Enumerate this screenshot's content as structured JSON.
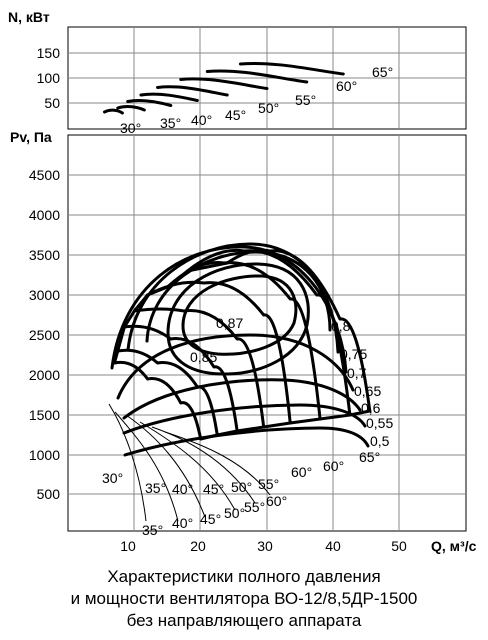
{
  "chart_data": [
    {
      "type": "line",
      "ylabel": "N, кВт",
      "yticks": [
        "150",
        "100",
        "50"
      ],
      "ylim": [
        0,
        175
      ],
      "xlim": [
        0,
        50
      ],
      "series": [
        {
          "name": "30°",
          "x": [
            5.5,
            8.2
          ],
          "y": [
            32,
            30
          ]
        },
        {
          "name": "35°",
          "x": [
            7.5,
            11.5
          ],
          "y": [
            40,
            36
          ]
        },
        {
          "name": "40°",
          "x": [
            9,
            15.5
          ],
          "y": [
            53,
            45
          ]
        },
        {
          "name": "45°",
          "x": [
            11,
            19.5
          ],
          "y": [
            66,
            55
          ]
        },
        {
          "name": "50°",
          "x": [
            13.5,
            24
          ],
          "y": [
            81,
            66
          ]
        },
        {
          "name": "55°",
          "x": [
            17,
            30
          ],
          "y": [
            97,
            79
          ]
        },
        {
          "name": "60°",
          "x": [
            21,
            36
          ],
          "y": [
            113,
            92
          ]
        },
        {
          "name": "65°",
          "x": [
            26,
            41.5
          ],
          "y": [
            128,
            108
          ]
        }
      ]
    },
    {
      "type": "line",
      "ylabel": "Pv, Па",
      "xlabel": "Q, м³/с",
      "yticks": [
        "4500",
        "4000",
        "3500",
        "3000",
        "2500",
        "2000",
        "1500",
        "1000",
        "500"
      ],
      "xticks": [
        "10",
        "20",
        "30",
        "40",
        "50"
      ],
      "xlim": [
        0,
        50
      ],
      "ylim": [
        0,
        5000
      ],
      "blade_angles": [
        "30°",
        "35°",
        "40°",
        "45°",
        "50°",
        "55°",
        "60°",
        "65°"
      ],
      "efficiency": [
        "0,87",
        "0,85",
        "0,8",
        "0,75",
        "0,7",
        "0,65",
        "0,6",
        "0,55",
        "0,5"
      ],
      "series": [
        {
          "name": "30°",
          "x": [
            7,
            12,
            17,
            20
          ],
          "y": [
            2150,
            1950,
            1650,
            1200
          ]
        },
        {
          "name": "35°",
          "x": [
            7.5,
            13.5,
            19.5,
            22.5
          ],
          "y": [
            2300,
            2150,
            1850,
            1250
          ]
        },
        {
          "name": "40°",
          "x": [
            8.5,
            15.5,
            22,
            25.5
          ],
          "y": [
            2600,
            2450,
            2100,
            1300
          ]
        },
        {
          "name": "45°",
          "x": [
            10,
            17.5,
            25.5,
            29.5
          ],
          "y": [
            2800,
            2800,
            2450,
            1350
          ]
        },
        {
          "name": "50°",
          "x": [
            12,
            20.5,
            29.5,
            33.5
          ],
          "y": [
            3000,
            3150,
            2750,
            1400
          ]
        },
        {
          "name": "55°",
          "x": [
            15,
            23.5,
            33.5,
            38
          ],
          "y": [
            3100,
            3400,
            2950,
            1450
          ]
        },
        {
          "name": "60°",
          "x": [
            18,
            26.5,
            37.5,
            42.5
          ],
          "y": [
            3300,
            3550,
            3000,
            1500
          ]
        },
        {
          "name": "65°",
          "x": [
            24,
            30.5,
            41,
            45.5
          ],
          "y": [
            3400,
            3550,
            2700,
            1550
          ]
        }
      ]
    }
  ],
  "caption": {
    "line1": "Характеристики полного давления",
    "line2": "и мощности вентилятора ВО-12/8,5ДР-1500",
    "line3": "без направляющего аппарата"
  }
}
